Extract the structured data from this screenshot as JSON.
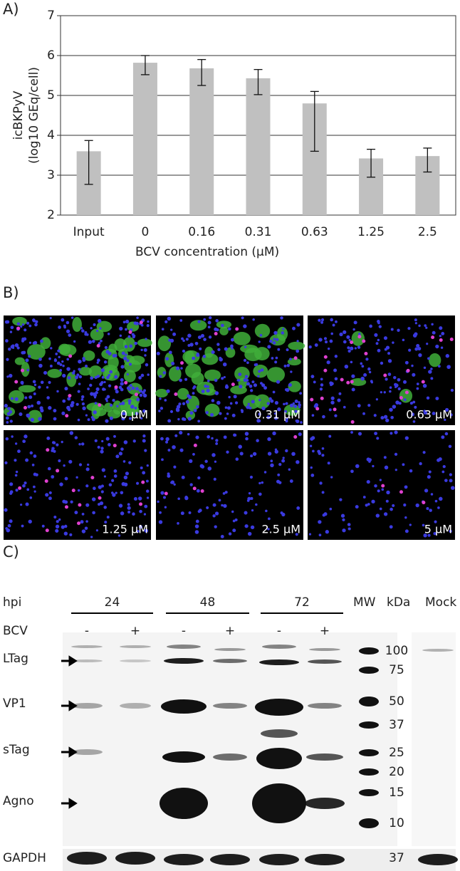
{
  "chart_data": {
    "type": "bar",
    "panel_label": "A)",
    "y_label": [
      "icBKPyV",
      "(log10 GEq/cell)"
    ],
    "x_label": "BCV concentration (µM)",
    "categories": [
      "Input",
      "0",
      "0.16",
      "0.31",
      "0.63",
      "1.25",
      "2.5"
    ],
    "values": [
      3.6,
      5.82,
      5.68,
      5.43,
      4.8,
      3.42,
      3.48
    ],
    "error_plus": [
      0.27,
      0.18,
      0.22,
      0.22,
      0.3,
      0.23,
      0.2
    ],
    "error_minus": [
      0.83,
      0.3,
      0.43,
      0.41,
      1.2,
      0.47,
      0.4
    ],
    "color": "#c0c0c0",
    "ylim": [
      2,
      7
    ],
    "yticks": [
      2,
      3,
      4,
      5,
      6,
      7
    ],
    "grid": true
  },
  "panel_b": {
    "label": "B)",
    "images": [
      "0 µM",
      "0.31 µM",
      "0.63 µM",
      "1.25 µM",
      "2.5 µM",
      "5 µM"
    ]
  },
  "panel_c": {
    "label": "C)",
    "hpi_label": "hpi",
    "timepoints": [
      "24",
      "48",
      "72"
    ],
    "bcv_label": "BCV",
    "treatments": [
      "-",
      "+",
      "-",
      "+",
      "-",
      "+"
    ],
    "mw_label": "MW",
    "kda_label": "kDa",
    "mock_label": "Mock",
    "proteins": [
      "LTag",
      "VP1",
      "sTag",
      "Agno"
    ],
    "loading_control": "GAPDH",
    "mw_markers": [
      100,
      75,
      50,
      37,
      25,
      20,
      15,
      10
    ],
    "gapdh_marker": 37
  }
}
